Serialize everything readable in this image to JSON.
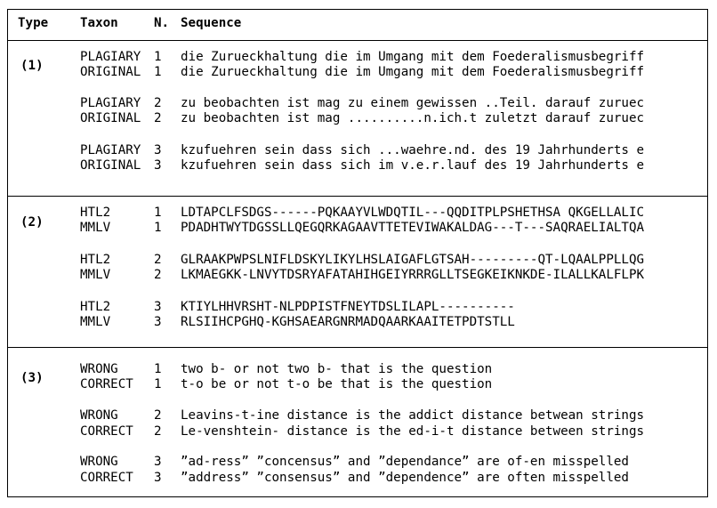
{
  "headers": {
    "type": "Type",
    "taxon": "Taxon",
    "n": "N.",
    "sequence": "Sequence"
  },
  "groups": [
    {
      "type": "(1)",
      "rows": [
        {
          "taxon": "PLAGIARY",
          "n": "1",
          "sequence": "die Zurueckhaltung die im Umgang mit dem Foederalismusbegriff"
        },
        {
          "taxon": "ORIGINAL",
          "n": "1",
          "sequence": "die Zurueckhaltung die im Umgang mit dem Foederalismusbegriff"
        },
        {
          "taxon": "PLAGIARY",
          "n": "2",
          "sequence": "zu beobachten ist mag zu einem gewissen ..Teil. darauf zuruec"
        },
        {
          "taxon": "ORIGINAL",
          "n": "2",
          "sequence": "zu beobachten ist mag ..........n.ich.t zuletzt darauf zuruec"
        },
        {
          "taxon": "PLAGIARY",
          "n": "3",
          "sequence": "kzufuehren sein dass sich ...waehre.nd. des 19 Jahrhunderts e"
        },
        {
          "taxon": "ORIGINAL",
          "n": "3",
          "sequence": "kzufuehren sein dass sich im v.e.r.lauf des 19 Jahrhunderts e"
        }
      ]
    },
    {
      "type": "(2)",
      "rows": [
        {
          "taxon": "HTL2",
          "n": "1",
          "sequence": "LDTAPCLFSDGS------PQKAAYVLWDQTIL---QQDITPLPSHETHSA QKGELLALIC"
        },
        {
          "taxon": "MMLV",
          "n": "1",
          "sequence": "PDADHTWYTDGSSLLQEGQRKAGAAVTTETEVIWAKALDAG---T---SAQRAELIALTQA"
        },
        {
          "taxon": "HTL2",
          "n": "2",
          "sequence": "GLRAAKPWPSLNIFLDSKYLIKYLHSLAIGAFLGTSAH---------QT-LQAALPPLLQG"
        },
        {
          "taxon": "MMLV",
          "n": "2",
          "sequence": "LKMAEGKK-LNVYTDSRYAFATAHIHGEIYRRRGLLTSEGKEIKNKDE-ILALLKALFLPK"
        },
        {
          "taxon": "HTL2",
          "n": "3",
          "sequence": "KTIYLHHVRSHT-NLPDPISTFNEYTDSLILAPL----------"
        },
        {
          "taxon": "MMLV",
          "n": "3",
          "sequence": "RLSIIHCPGHQ-KGHSAEARGNRMADQAARKAAITETPDTSTLL"
        }
      ]
    },
    {
      "type": "(3)",
      "rows": [
        {
          "taxon": "WRONG",
          "n": "1",
          "sequence": "two b- or not two b- that is the question"
        },
        {
          "taxon": "CORRECT",
          "n": "1",
          "sequence": "t-o be or not t-o be that is the question"
        },
        {
          "taxon": "WRONG",
          "n": "2",
          "sequence": "Leavins-t-ine distance is the addict distance betwean strings"
        },
        {
          "taxon": "CORRECT",
          "n": "2",
          "sequence": "Le-venshtein- distance is the ed-i-t distance between strings"
        },
        {
          "taxon": "WRONG",
          "n": "3",
          "sequence": "”ad-ress” ”concensus” and ”dependance” are of-en misspelled"
        },
        {
          "taxon": "CORRECT",
          "n": "3",
          "sequence": "”address” ”consensus” and ”dependence” are often misspelled"
        }
      ]
    }
  ]
}
